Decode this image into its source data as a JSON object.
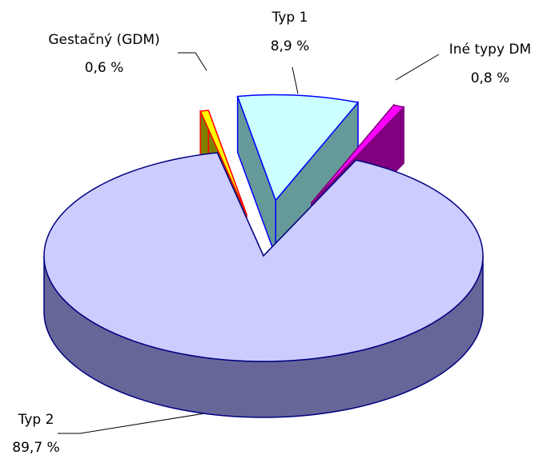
{
  "chart_data": {
    "type": "pie",
    "three_d": true,
    "categories": [
      "Typ 1",
      "Iné typy DM",
      "Typ 2",
      "Gestačný (GDM)"
    ],
    "values": [
      8.9,
      0.8,
      89.7,
      0.6
    ],
    "value_labels": [
      "8,9 %",
      "0,8 %",
      "89,7 %",
      "0,6 %"
    ],
    "colors": [
      "#ccffff",
      "#ff00ff",
      "#ccccff",
      "#ffff00"
    ],
    "side_colors": [
      "#669999",
      "#800080",
      "#666699",
      "#808000"
    ],
    "edge_colors": [
      "#0000ff",
      "#800080",
      "#000080",
      "#ff0000"
    ]
  }
}
